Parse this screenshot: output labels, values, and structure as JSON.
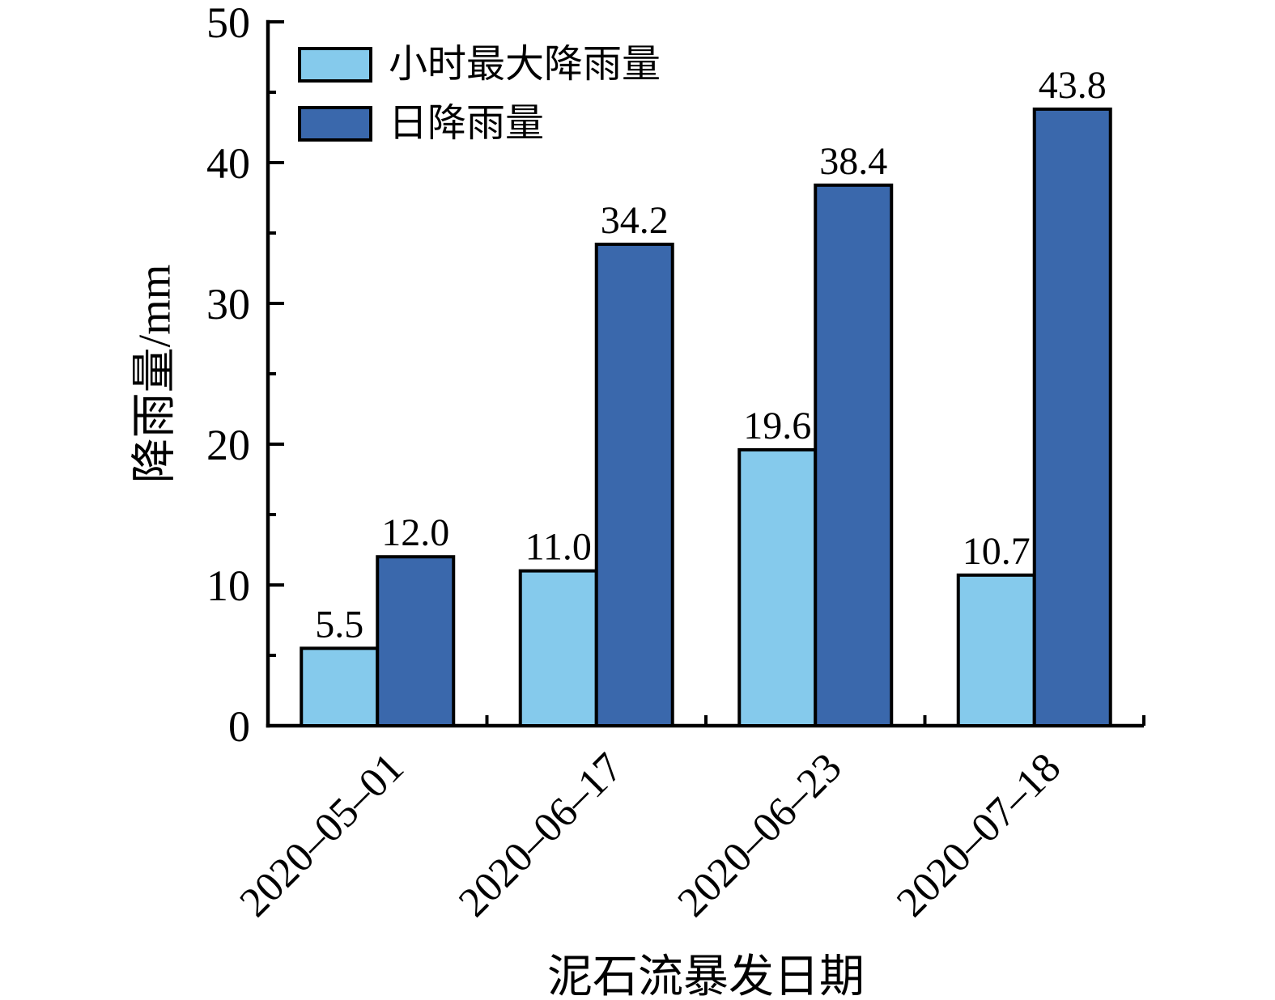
{
  "chart_data": {
    "type": "bar",
    "title": "",
    "xlabel": "泥石流暴发日期",
    "ylabel": "降雨量/mm",
    "categories": [
      "2020–05–01",
      "2020–06–17",
      "2020–06–23",
      "2020–07–18"
    ],
    "series": [
      {
        "name": "小时最大降雨量",
        "color": "#85CAEC",
        "values": [
          5.5,
          11.0,
          19.6,
          10.7
        ]
      },
      {
        "name": "日降雨量",
        "color": "#3A68AC",
        "values": [
          12.0,
          34.2,
          38.4,
          43.8
        ]
      }
    ],
    "value_label_decimals": 1,
    "ylim": [
      0,
      50
    ],
    "y_major_step": 10,
    "y_minor_step": 5,
    "y_tick_labels": [
      "0",
      "10",
      "20",
      "30",
      "40",
      "50"
    ],
    "grid": false,
    "legend_position": "top-left",
    "bar_outline_color": "#000000",
    "axis_color": "#000000",
    "label_color": "#000000"
  }
}
